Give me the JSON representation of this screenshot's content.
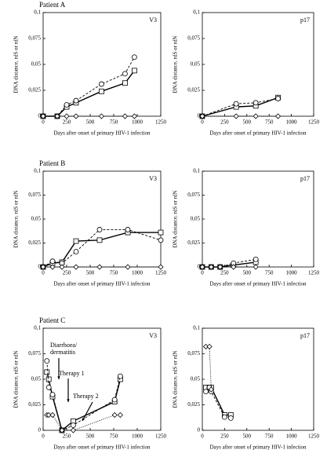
{
  "chart_data": [
    {
      "type": "line",
      "title": "Patient A",
      "annotation": "V3",
      "ylabel": "DNA distance, rdS or rdN",
      "xlabel": "Days after onset of primary HIV-1 infection",
      "x": [
        0,
        150,
        250,
        350,
        620,
        870,
        970
      ],
      "series": [
        {
          "marker": "square",
          "line_style": "solid",
          "color": "#000000",
          "values": [
            0,
            0,
            0.009,
            0.013,
            0.024,
            0.032,
            0.044
          ]
        },
        {
          "marker": "circle",
          "line_style": "dashed",
          "color": "#000000",
          "values": [
            0,
            0,
            0.011,
            0.015,
            0.031,
            0.041,
            0.057
          ]
        },
        {
          "marker": "diamond",
          "line_style": "dotted",
          "color": "#000000",
          "values": [
            0,
            0,
            0,
            0,
            0,
            0,
            0
          ]
        }
      ],
      "xlim": [
        0,
        1250
      ],
      "xticks": [
        0,
        250,
        500,
        750,
        1000,
        1250
      ],
      "ylim": [
        0,
        0.1
      ],
      "yticks": [
        0,
        {
          "value": 0.025,
          "label": "0,025"
        },
        {
          "value": 0.05,
          "label": "0,05"
        },
        {
          "value": 0.075,
          "label": "0,075"
        },
        {
          "value": 0.1,
          "label": "0,1"
        }
      ]
    },
    {
      "type": "line",
      "annotation": "p17",
      "ylabel": "DNA distance, rdS or rdN",
      "xlabel": "Days after onset of primary HIV-1 infection",
      "x": [
        0,
        380,
        600,
        850
      ],
      "series": [
        {
          "marker": "square",
          "line_style": "solid",
          "color": "#000000",
          "values": [
            0,
            0.009,
            0.01,
            0.018
          ]
        },
        {
          "marker": "circle",
          "line_style": "dashed",
          "color": "#000000",
          "values": [
            0,
            0.012,
            0.013,
            0.017
          ]
        },
        {
          "marker": "diamond",
          "line_style": "dotted",
          "color": "#000000",
          "values": [
            0,
            0,
            0,
            0
          ]
        }
      ],
      "xlim": [
        0,
        1250
      ],
      "xticks": [
        0,
        250,
        500,
        750,
        1000,
        1250
      ],
      "ylim": [
        0,
        0.1
      ],
      "yticks": [
        0,
        {
          "value": 0.025,
          "label": "0,025"
        },
        {
          "value": 0.05,
          "label": "0,05"
        },
        {
          "value": 0.075,
          "label": "0,075"
        },
        {
          "value": 0.1,
          "label": "0,1"
        }
      ]
    },
    {
      "type": "line",
      "title": "Patient B",
      "annotation": "V3",
      "ylabel": "DNA distance, rdS or rdN",
      "xlabel": "Days after onset of primary HIV-1 infection",
      "x": [
        0,
        100,
        200,
        350,
        600,
        900,
        1250
      ],
      "series": [
        {
          "marker": "square",
          "line_style": "solid",
          "color": "#000000",
          "values": [
            0,
            0.004,
            0.005,
            0.027,
            0.028,
            0.036,
            0.036
          ]
        },
        {
          "marker": "circle",
          "line_style": "dashed",
          "color": "#000000",
          "values": [
            0,
            0.006,
            0.004,
            0.016,
            0.039,
            0.039,
            0.028
          ]
        },
        {
          "marker": "diamond",
          "line_style": "dotted",
          "color": "#000000",
          "values": [
            0,
            0,
            0,
            0,
            0,
            0,
            0
          ]
        }
      ],
      "xlim": [
        0,
        1250
      ],
      "xticks": [
        0,
        250,
        500,
        750,
        1000,
        1250
      ],
      "ylim": [
        0,
        0.1
      ],
      "yticks": [
        0,
        {
          "value": 0.025,
          "label": "0,025"
        },
        {
          "value": 0.05,
          "label": "0,05"
        },
        {
          "value": 0.075,
          "label": "0,075"
        },
        {
          "value": 0.1,
          "label": "0,1"
        }
      ]
    },
    {
      "type": "line",
      "annotation": "p17",
      "ylabel": "DNA distance, rdS or rdN",
      "xlabel": "Days after onset of primary HIV-1 infection",
      "x": [
        0,
        100,
        200,
        350,
        600
      ],
      "series": [
        {
          "marker": "square",
          "line_style": "solid",
          "color": "#000000",
          "values": [
            0,
            0,
            0,
            0.002,
            0.005
          ]
        },
        {
          "marker": "circle",
          "line_style": "dashed",
          "color": "#000000",
          "values": [
            0,
            0,
            0,
            0.004,
            0.008
          ]
        },
        {
          "marker": "diamond",
          "line_style": "dotted",
          "color": "#000000",
          "values": [
            0,
            0,
            0,
            0,
            0
          ]
        }
      ],
      "xlim": [
        0,
        1250
      ],
      "xticks": [
        0,
        250,
        500,
        750,
        1000,
        1250
      ],
      "ylim": [
        0,
        0.1
      ],
      "yticks": [
        0,
        {
          "value": 0.025,
          "label": "0,025"
        },
        {
          "value": 0.05,
          "label": "0,05"
        },
        {
          "value": 0.075,
          "label": "0,075"
        },
        {
          "value": 0.1,
          "label": "0,1"
        }
      ]
    },
    {
      "type": "line",
      "title": "Patient C",
      "annotation": "V3",
      "ylabel": "DNA distance, rdS or rdN",
      "xlabel": "Days after onset of primary HIV-1 infection",
      "events": [
        "Diarrhoea/",
        "dermatitis",
        "Therapy 1",
        "Therapy 2"
      ],
      "x": [
        40,
        60,
        100,
        200,
        320,
        760,
        820
      ],
      "series": [
        {
          "marker": "square",
          "line_style": "solid",
          "color": "#000000",
          "values": [
            0.057,
            0.05,
            0.033,
            0,
            0.009,
            0.028,
            0.05
          ]
        },
        {
          "marker": "circle",
          "line_style": "dashed",
          "color": "#000000",
          "values": [
            0.068,
            0.042,
            0.035,
            0,
            0.005,
            0.03,
            0.053
          ]
        },
        {
          "marker": "diamond",
          "line_style": "dotted",
          "color": "#000000",
          "values": [
            0.015,
            0.015,
            0.015,
            0,
            0,
            0.015,
            0.015
          ]
        }
      ],
      "xlim": [
        0,
        1250
      ],
      "xticks": [
        0,
        250,
        500,
        750,
        1000,
        1250
      ],
      "ylim": [
        0,
        0.1
      ],
      "yticks": [
        0,
        {
          "value": 0.025,
          "label": "0,025"
        },
        {
          "value": 0.05,
          "label": "0,05"
        },
        {
          "value": 0.075,
          "label": "0,075"
        },
        {
          "value": 0.1,
          "label": "0,1"
        }
      ]
    },
    {
      "type": "line",
      "annotation": "p17",
      "ylabel": "DNA distance, rdS or rdN",
      "xlabel": "Days after onset of primary HIV-1 infection",
      "x": [
        40,
        80,
        100,
        250,
        320
      ],
      "series": [
        {
          "marker": "square",
          "line_style": "solid",
          "color": "#000000",
          "values": [
            0.042,
            0.042,
            0.042,
            0.015,
            0.015
          ]
        },
        {
          "marker": "circle",
          "line_style": "dashed",
          "color": "#000000",
          "values": [
            0.038,
            0.042,
            0.038,
            0.013,
            0.012
          ]
        },
        {
          "marker": "diamond",
          "line_style": "dotted",
          "color": "#000000",
          "values": [
            0.082,
            0.082,
            0.04,
            null,
            null
          ]
        }
      ],
      "xlim": [
        0,
        1250
      ],
      "xticks": [
        0,
        250,
        500,
        750,
        1000,
        1250
      ],
      "ylim": [
        0,
        0.1
      ],
      "yticks": [
        0,
        {
          "value": 0.025,
          "label": "0,025"
        },
        {
          "value": 0.05,
          "label": "0,05"
        },
        {
          "value": 0.075,
          "label": "0,075"
        },
        {
          "value": 0.1,
          "label": "0,1"
        }
      ]
    }
  ]
}
